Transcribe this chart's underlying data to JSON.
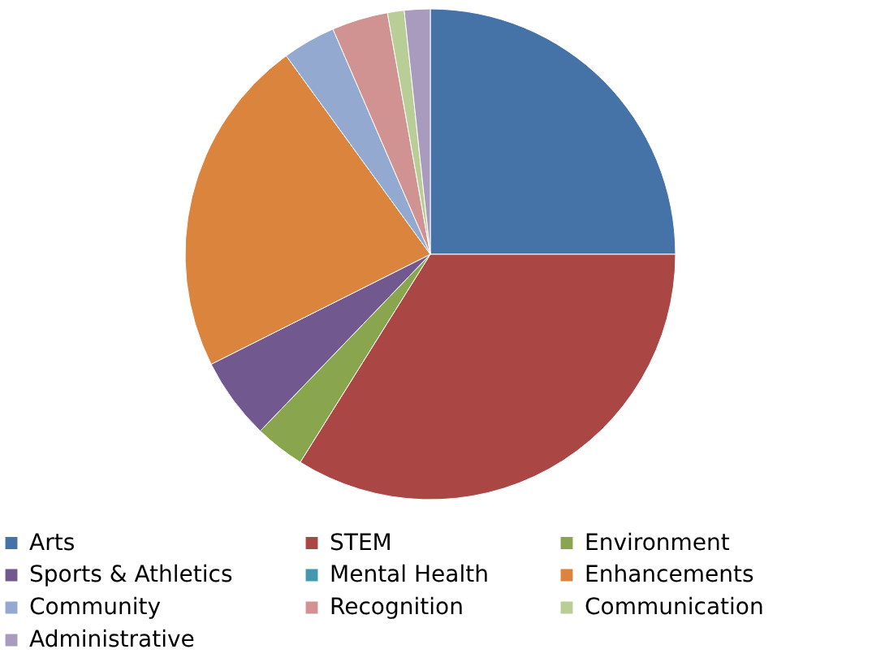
{
  "chart_data": {
    "type": "pie",
    "categories": [
      "Arts",
      "STEM",
      "Environment",
      "Sports & Athletics",
      "Mental Health",
      "Enhancements",
      "Community",
      "Recognition",
      "Communication",
      "Administrative"
    ],
    "values": [
      25,
      33.9,
      3.3,
      5.4,
      0,
      22.4,
      3.5,
      3.7,
      1.1,
      1.7
    ],
    "colors": [
      "#4572a7",
      "#aa4643",
      "#89a54e",
      "#71588f",
      "#4198af",
      "#db843d",
      "#93a9cf",
      "#d19392",
      "#b9cd96",
      "#a99bbd"
    ],
    "legend": "bottom"
  }
}
